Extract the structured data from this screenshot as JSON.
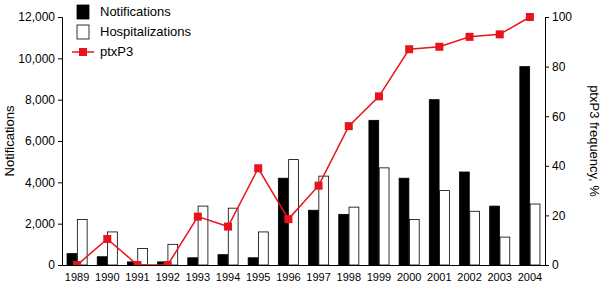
{
  "chart_data": {
    "type": "bar",
    "categories": [
      "1989",
      "1990",
      "1991",
      "1992",
      "1993",
      "1994",
      "1995",
      "1996",
      "1997",
      "1998",
      "1999",
      "2000",
      "2001",
      "2002",
      "2003",
      "2004"
    ],
    "series": [
      {
        "name": "Notifications",
        "type": "bar",
        "color": "#000000",
        "values": [
          550,
          400,
          150,
          150,
          350,
          500,
          350,
          4200,
          2650,
          2450,
          7000,
          4200,
          8000,
          4500,
          2850,
          9600
        ]
      },
      {
        "name": "Hospitalizations",
        "type": "bar",
        "color": "#ffffff",
        "values": [
          2200,
          1600,
          800,
          1000,
          2850,
          2750,
          1600,
          5100,
          4300,
          2800,
          4700,
          2200,
          3600,
          2600,
          1350,
          2950
        ]
      },
      {
        "name": "ptxP3",
        "type": "line",
        "axis": "y2",
        "color": "#e8141c",
        "marker": "square",
        "values": [
          0,
          10.5,
          0,
          0,
          19.5,
          15.5,
          39,
          18.5,
          32,
          56,
          68,
          87,
          88,
          92,
          93,
          100
        ]
      }
    ],
    "y_label": "Notifications",
    "y2_label": "ptxP3 frequency, %",
    "ylim": [
      0,
      12000
    ],
    "yticks": [
      0,
      {
        "value": 2000,
        "label": "2,000"
      },
      {
        "value": 4000,
        "label": "4,000"
      },
      {
        "value": 6000,
        "label": "6,000"
      },
      {
        "value": 8000,
        "label": "8,000"
      },
      {
        "value": 10000,
        "label": "10,000"
      },
      {
        "value": 12000,
        "label": "12,000"
      }
    ],
    "y2lim": [
      0,
      100
    ],
    "y2ticks": [
      0,
      20,
      40,
      60,
      80,
      100
    ],
    "legend": "top-left",
    "grid": false
  }
}
